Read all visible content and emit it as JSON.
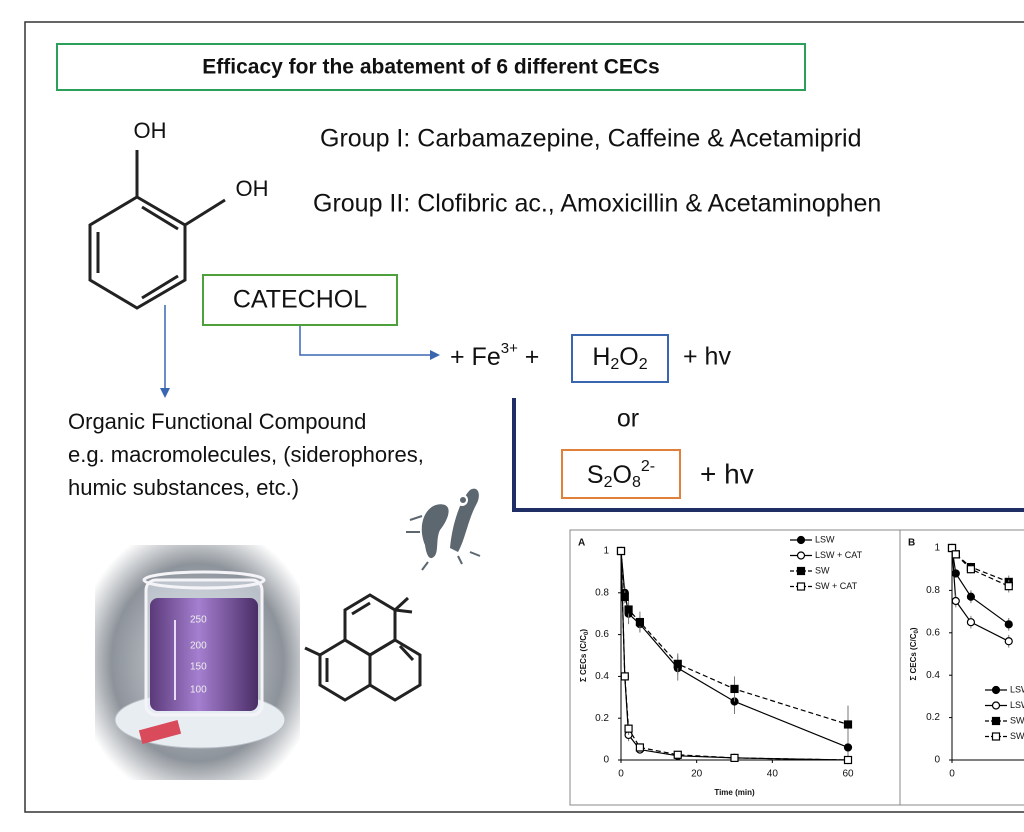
{
  "title": "Efficacy for the abatement of 6 different CECs",
  "groups": [
    "Group I: Carbamazepine, Caffeine & Acetamiprid",
    "Group II: Clofibric ac., Amoxicillin & Acetaminophen"
  ],
  "structure": {
    "oh": [
      "OH",
      "OH"
    ],
    "label": "CATECHOL"
  },
  "reaction": {
    "iron": [
      "+ Fe",
      "3+",
      " +"
    ],
    "peroxide": [
      "H",
      "2",
      "O",
      "2"
    ],
    "light": "+ hv",
    "or": "or",
    "persulfate": [
      "S",
      "2",
      "O",
      "8",
      "2-"
    ],
    "light2": "+ hv"
  },
  "organic": [
    "Organic Functional Compound",
    "e.g. macromolecules, (siderophores,",
    "humic substances, etc.)"
  ],
  "beaker_marks": [
    "250",
    "200",
    "150",
    "100"
  ],
  "chart_data": [
    {
      "type": "line",
      "panel": "A",
      "x": [
        0,
        1,
        2,
        5,
        15,
        30,
        60
      ],
      "xlim": [
        0,
        60
      ],
      "xticks": [
        0,
        20,
        40,
        60
      ],
      "ylim": [
        0,
        1
      ],
      "yticks": [
        0,
        0.2,
        0.4,
        0.6,
        0.8,
        1
      ],
      "xlabel": "Time (min)",
      "ylabel": [
        "Σ CECs (C/C",
        "0",
        ")"
      ],
      "series": [
        {
          "name": "LSW",
          "color": "#000000",
          "marker": "circle",
          "filled": true,
          "dashed": false,
          "values": [
            1,
            0.8,
            0.7,
            0.65,
            0.44,
            0.28,
            0.06
          ],
          "errors": [
            0,
            0.03,
            0.05,
            0.04,
            0.06,
            0.06,
            0.07
          ]
        },
        {
          "name": "LSW + CAT",
          "color": "#000000",
          "marker": "circle",
          "filled": false,
          "dashed": false,
          "values": [
            1,
            0.4,
            0.12,
            0.05,
            0.02,
            0.01,
            0
          ],
          "errors": [
            0,
            0.02,
            0.03,
            0.02,
            0.01,
            0.01,
            0
          ]
        },
        {
          "name": "SW",
          "color": "#000000",
          "marker": "square",
          "filled": true,
          "dashed": true,
          "values": [
            1,
            0.78,
            0.72,
            0.66,
            0.46,
            0.34,
            0.17
          ],
          "errors": [
            0,
            0.03,
            0.04,
            0.05,
            0.05,
            0.06,
            0.09
          ]
        },
        {
          "name": "SW + CAT",
          "color": "#000000",
          "marker": "square",
          "filled": false,
          "dashed": true,
          "values": [
            1,
            0.4,
            0.15,
            0.06,
            0.025,
            0.01,
            0
          ],
          "errors": [
            0,
            0.02,
            0.03,
            0.02,
            0.01,
            0.01,
            0
          ]
        }
      ]
    },
    {
      "type": "line",
      "panel": "B",
      "x": [
        0,
        1,
        5,
        15
      ],
      "xlim": [
        0,
        60
      ],
      "xticks": [
        0
      ],
      "ylim": [
        0,
        1
      ],
      "yticks": [
        0,
        0.2,
        0.4,
        0.6,
        0.8,
        1
      ],
      "ylabel": [
        "Σ CECs (C/C",
        "0",
        ")"
      ],
      "series": [
        {
          "name": "LSW",
          "color": "#000000",
          "marker": "circle",
          "filled": true,
          "dashed": false,
          "values": [
            1,
            0.88,
            0.77,
            0.64
          ],
          "errors": [
            0,
            0.02,
            0.03,
            0.03
          ]
        },
        {
          "name": "LSW + CAT",
          "color": "#000000",
          "marker": "circle",
          "filled": false,
          "dashed": false,
          "values": [
            1,
            0.75,
            0.65,
            0.56
          ],
          "errors": [
            0,
            0.03,
            0.03,
            0.03
          ]
        },
        {
          "name": "SW",
          "color": "#000000",
          "marker": "square",
          "filled": true,
          "dashed": true,
          "values": [
            1,
            0.97,
            0.91,
            0.84
          ],
          "errors": [
            0,
            0.01,
            0.02,
            0.03
          ]
        },
        {
          "name": "SW + CAT",
          "color": "#000000",
          "marker": "square",
          "filled": false,
          "dashed": true,
          "values": [
            1,
            0.97,
            0.9,
            0.82
          ],
          "errors": [
            0,
            0.01,
            0.02,
            0.03
          ]
        }
      ]
    }
  ]
}
